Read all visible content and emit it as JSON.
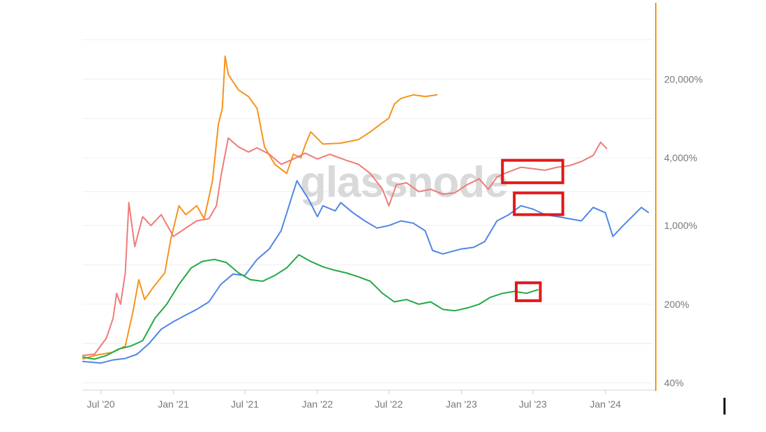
{
  "chart_data": {
    "type": "line",
    "watermark": "glassnode",
    "x_ticks": [
      "Jul '20",
      "Jan '21",
      "Jul '21",
      "Jan '22",
      "Jul '22",
      "Jan '23",
      "Jul '23",
      "Jan '24"
    ],
    "x_tick_dates": [
      "2020-07-01",
      "2021-01-01",
      "2021-07-01",
      "2022-01-01",
      "2022-07-01",
      "2023-01-01",
      "2023-07-01",
      "2024-01-01"
    ],
    "x_range": [
      "2020-05-15",
      "2024-04-20"
    ],
    "y_scale": "log",
    "y_ticks": [
      40,
      200,
      1000,
      4000,
      20000
    ],
    "y_tick_labels": [
      "40%",
      "200%",
      "1,000%",
      "4,000%",
      "20,000%"
    ],
    "y_range": [
      35,
      90000
    ],
    "grid": true,
    "right_axis_color": "#f7931a",
    "series": [
      {
        "color": "#f7931a",
        "points": [
          [
            "2020-05-15",
            65
          ],
          [
            "2020-06-15",
            70
          ],
          [
            "2020-08-01",
            75
          ],
          [
            "2020-09-01",
            85
          ],
          [
            "2020-09-20",
            170
          ],
          [
            "2020-10-05",
            330
          ],
          [
            "2020-10-20",
            220
          ],
          [
            "2020-11-10",
            280
          ],
          [
            "2020-12-10",
            380
          ],
          [
            "2020-12-25",
            750
          ],
          [
            "2021-01-15",
            1500
          ],
          [
            "2021-02-01",
            1250
          ],
          [
            "2021-03-01",
            1500
          ],
          [
            "2021-03-20",
            1150
          ],
          [
            "2021-04-10",
            2500
          ],
          [
            "2021-04-25",
            8000
          ],
          [
            "2021-05-05",
            11000
          ],
          [
            "2021-05-12",
            32000
          ],
          [
            "2021-05-20",
            22000
          ],
          [
            "2021-06-15",
            16000
          ],
          [
            "2021-07-10",
            14000
          ],
          [
            "2021-08-01",
            11000
          ],
          [
            "2021-08-20",
            5000
          ],
          [
            "2021-09-15",
            3500
          ],
          [
            "2021-10-15",
            2900
          ],
          [
            "2021-11-01",
            4300
          ],
          [
            "2021-11-20",
            4000
          ],
          [
            "2021-12-01",
            5200
          ],
          [
            "2021-12-15",
            6800
          ],
          [
            "2022-01-15",
            5300
          ],
          [
            "2022-03-01",
            5400
          ],
          [
            "2022-04-15",
            5800
          ],
          [
            "2022-05-15",
            6800
          ],
          [
            "2022-06-15",
            8200
          ],
          [
            "2022-07-01",
            9000
          ],
          [
            "2022-07-15",
            12000
          ],
          [
            "2022-08-01",
            13500
          ],
          [
            "2022-09-01",
            14500
          ],
          [
            "2022-10-01",
            14000
          ],
          [
            "2022-11-01",
            14500
          ]
        ]
      },
      {
        "color": "#ef7b7b",
        "points": [
          [
            "2020-05-15",
            70
          ],
          [
            "2020-06-15",
            72
          ],
          [
            "2020-07-15",
            100
          ],
          [
            "2020-08-01",
            150
          ],
          [
            "2020-08-10",
            250
          ],
          [
            "2020-08-20",
            200
          ],
          [
            "2020-09-01",
            380
          ],
          [
            "2020-09-10",
            1600
          ],
          [
            "2020-09-25",
            650
          ],
          [
            "2020-10-15",
            1200
          ],
          [
            "2020-11-05",
            1000
          ],
          [
            "2020-12-01",
            1250
          ],
          [
            "2021-01-01",
            800
          ],
          [
            "2021-02-01",
            950
          ],
          [
            "2021-03-01",
            1100
          ],
          [
            "2021-04-01",
            1150
          ],
          [
            "2021-04-20",
            1500
          ],
          [
            "2021-05-01",
            2700
          ],
          [
            "2021-05-20",
            6000
          ],
          [
            "2021-06-15",
            5000
          ],
          [
            "2021-07-10",
            4500
          ],
          [
            "2021-08-01",
            4900
          ],
          [
            "2021-09-01",
            4300
          ],
          [
            "2021-10-01",
            3500
          ],
          [
            "2021-11-01",
            3900
          ],
          [
            "2021-12-01",
            4400
          ],
          [
            "2022-01-01",
            3900
          ],
          [
            "2022-02-01",
            4300
          ],
          [
            "2022-03-15",
            3800
          ],
          [
            "2022-04-15",
            3500
          ],
          [
            "2022-05-15",
            2900
          ],
          [
            "2022-06-15",
            2100
          ],
          [
            "2022-07-01",
            1500
          ],
          [
            "2022-07-20",
            2300
          ],
          [
            "2022-08-15",
            2400
          ],
          [
            "2022-09-15",
            2000
          ],
          [
            "2022-10-15",
            2100
          ],
          [
            "2022-11-15",
            1900
          ],
          [
            "2022-12-15",
            1950
          ],
          [
            "2023-01-15",
            2300
          ],
          [
            "2023-02-15",
            2600
          ],
          [
            "2023-03-10",
            2100
          ],
          [
            "2023-04-01",
            2700
          ],
          [
            "2023-05-01",
            3000
          ],
          [
            "2023-06-01",
            3300
          ],
          [
            "2023-07-01",
            3200
          ],
          [
            "2023-08-01",
            3100
          ],
          [
            "2023-09-01",
            3300
          ],
          [
            "2023-10-01",
            3400
          ],
          [
            "2023-11-01",
            3700
          ],
          [
            "2023-12-01",
            4200
          ],
          [
            "2023-12-20",
            5500
          ],
          [
            "2024-01-05",
            4800
          ]
        ]
      },
      {
        "color": "#4f86e8",
        "points": [
          [
            "2020-05-15",
            62
          ],
          [
            "2020-07-01",
            60
          ],
          [
            "2020-08-01",
            64
          ],
          [
            "2020-09-01",
            66
          ],
          [
            "2020-10-01",
            72
          ],
          [
            "2020-11-01",
            90
          ],
          [
            "2020-12-01",
            120
          ],
          [
            "2021-01-01",
            140
          ],
          [
            "2021-02-01",
            160
          ],
          [
            "2021-03-01",
            180
          ],
          [
            "2021-04-01",
            210
          ],
          [
            "2021-05-01",
            300
          ],
          [
            "2021-06-01",
            370
          ],
          [
            "2021-07-01",
            360
          ],
          [
            "2021-08-01",
            500
          ],
          [
            "2021-09-01",
            620
          ],
          [
            "2021-10-01",
            900
          ],
          [
            "2021-11-10",
            2500
          ],
          [
            "2021-12-10",
            1700
          ],
          [
            "2022-01-01",
            1200
          ],
          [
            "2022-01-15",
            1500
          ],
          [
            "2022-02-15",
            1350
          ],
          [
            "2022-03-01",
            1600
          ],
          [
            "2022-04-01",
            1300
          ],
          [
            "2022-05-01",
            1100
          ],
          [
            "2022-06-01",
            950
          ],
          [
            "2022-07-01",
            1000
          ],
          [
            "2022-08-01",
            1100
          ],
          [
            "2022-09-01",
            1050
          ],
          [
            "2022-10-01",
            900
          ],
          [
            "2022-10-20",
            600
          ],
          [
            "2022-11-15",
            560
          ],
          [
            "2023-01-01",
            620
          ],
          [
            "2023-02-01",
            640
          ],
          [
            "2023-03-01",
            720
          ],
          [
            "2023-04-01",
            1100
          ],
          [
            "2023-05-01",
            1250
          ],
          [
            "2023-06-01",
            1500
          ],
          [
            "2023-07-01",
            1400
          ],
          [
            "2023-08-01",
            1250
          ],
          [
            "2023-09-01",
            1200
          ],
          [
            "2023-10-01",
            1150
          ],
          [
            "2023-11-01",
            1100
          ],
          [
            "2023-12-01",
            1450
          ],
          [
            "2024-01-01",
            1300
          ],
          [
            "2024-01-20",
            800
          ],
          [
            "2024-02-15",
            1000
          ],
          [
            "2024-04-01",
            1450
          ],
          [
            "2024-04-20",
            1300
          ]
        ]
      },
      {
        "color": "#22aa44",
        "points": [
          [
            "2020-05-15",
            68
          ],
          [
            "2020-06-15",
            65
          ],
          [
            "2020-07-15",
            70
          ],
          [
            "2020-08-15",
            80
          ],
          [
            "2020-09-15",
            85
          ],
          [
            "2020-10-15",
            95
          ],
          [
            "2020-11-15",
            150
          ],
          [
            "2020-12-15",
            200
          ],
          [
            "2021-01-15",
            300
          ],
          [
            "2021-02-15",
            420
          ],
          [
            "2021-03-15",
            480
          ],
          [
            "2021-04-15",
            500
          ],
          [
            "2021-05-15",
            470
          ],
          [
            "2021-06-15",
            380
          ],
          [
            "2021-07-15",
            330
          ],
          [
            "2021-08-15",
            320
          ],
          [
            "2021-09-15",
            360
          ],
          [
            "2021-10-15",
            420
          ],
          [
            "2021-11-15",
            550
          ],
          [
            "2021-12-15",
            480
          ],
          [
            "2022-01-15",
            430
          ],
          [
            "2022-02-15",
            400
          ],
          [
            "2022-03-15",
            380
          ],
          [
            "2022-04-15",
            350
          ],
          [
            "2022-05-15",
            320
          ],
          [
            "2022-06-15",
            250
          ],
          [
            "2022-07-15",
            210
          ],
          [
            "2022-08-15",
            220
          ],
          [
            "2022-09-15",
            200
          ],
          [
            "2022-10-15",
            210
          ],
          [
            "2022-11-15",
            180
          ],
          [
            "2022-12-15",
            175
          ],
          [
            "2023-01-15",
            185
          ],
          [
            "2023-02-15",
            200
          ],
          [
            "2023-03-15",
            230
          ],
          [
            "2023-04-15",
            250
          ],
          [
            "2023-05-15",
            260
          ],
          [
            "2023-06-15",
            250
          ],
          [
            "2023-07-15",
            270
          ]
        ]
      }
    ],
    "highlight_boxes": [
      {
        "x": [
          "2023-04-15",
          "2023-09-15"
        ],
        "y": [
          2400,
          3800
        ],
        "color": "#e0191c"
      },
      {
        "x": [
          "2023-05-15",
          "2023-09-15"
        ],
        "y": [
          1250,
          1950
        ],
        "color": "#e0191c"
      },
      {
        "x": [
          "2023-05-20",
          "2023-07-20"
        ],
        "y": [
          215,
          310
        ],
        "color": "#e0191c"
      }
    ]
  }
}
